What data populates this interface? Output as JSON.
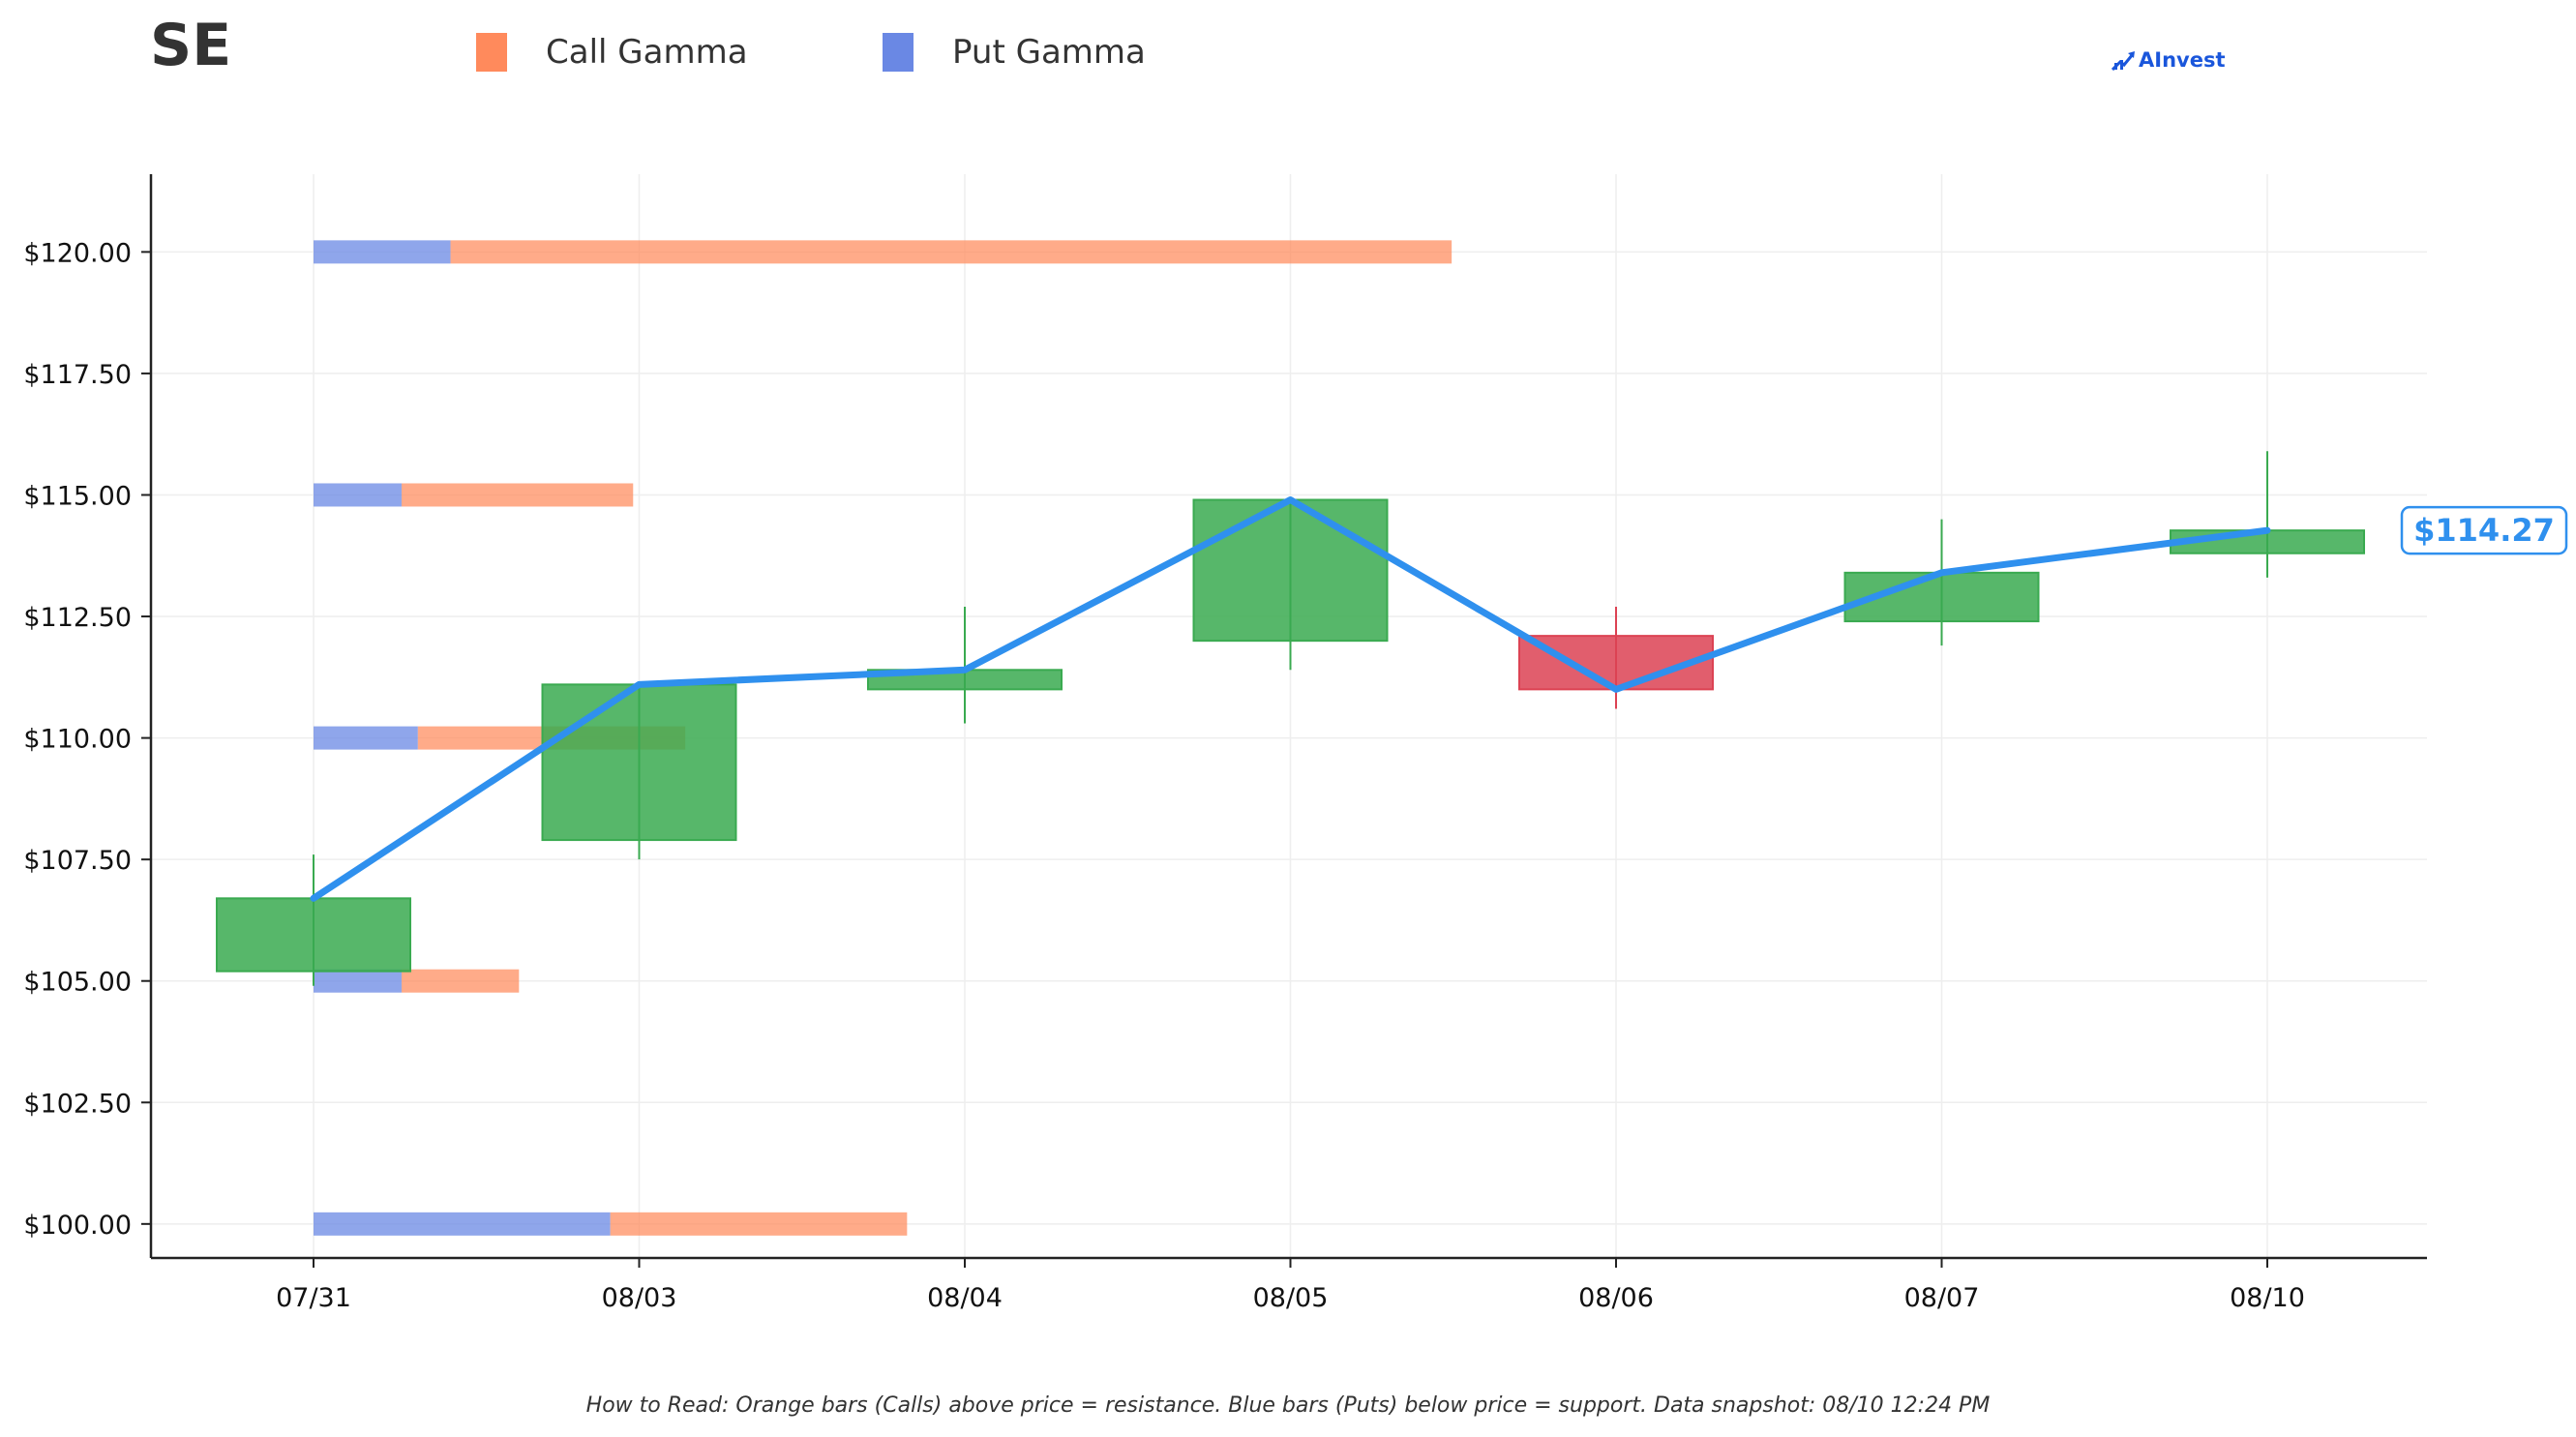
{
  "header": {
    "ticker": "SE",
    "brand": "AInvest"
  },
  "legend": [
    {
      "label": "Call Gamma",
      "color": "#ff8a5c"
    },
    {
      "label": "Put Gamma",
      "color": "#6a88e4"
    }
  ],
  "footnote": "How to Read: Orange bars (Calls) above price = resistance. Blue bars (Puts) below price = support. Data snapshot: 08/10 12:24 PM",
  "chart_data": {
    "type": "candlestick",
    "categories": [
      "07/31",
      "08/03",
      "08/04",
      "08/05",
      "08/06",
      "08/07",
      "08/10"
    ],
    "candles": [
      {
        "date": "07/31",
        "open": 105.2,
        "high": 107.6,
        "low": 104.9,
        "close": 106.7
      },
      {
        "date": "08/03",
        "open": 107.9,
        "high": 111.1,
        "low": 107.5,
        "close": 111.1
      },
      {
        "date": "08/04",
        "open": 111.0,
        "high": 112.7,
        "low": 110.3,
        "close": 111.4
      },
      {
        "date": "08/05",
        "open": 112.0,
        "high": 114.9,
        "low": 111.4,
        "close": 114.9
      },
      {
        "date": "08/06",
        "open": 112.1,
        "high": 112.7,
        "low": 110.6,
        "close": 111.0
      },
      {
        "date": "08/07",
        "open": 112.4,
        "high": 114.5,
        "low": 111.9,
        "close": 113.4
      },
      {
        "date": "08/10",
        "open": 113.8,
        "high": 115.9,
        "low": 113.3,
        "close": 114.27
      }
    ],
    "price_line": [
      106.7,
      111.1,
      111.4,
      114.9,
      111.0,
      113.4,
      114.27
    ],
    "last_price_label": "$114.27",
    "gamma_levels": [
      {
        "strike": 120.0,
        "put_gamma": 0.42,
        "call_gamma": 3.07
      },
      {
        "strike": 115.0,
        "put_gamma": 0.27,
        "call_gamma": 0.71
      },
      {
        "strike": 110.0,
        "put_gamma": 0.32,
        "call_gamma": 0.82
      },
      {
        "strike": 105.0,
        "put_gamma": 0.27,
        "call_gamma": 0.36
      },
      {
        "strike": 100.0,
        "put_gamma": 0.91,
        "call_gamma": 0.91
      }
    ],
    "y_ticks": [
      "$100.00",
      "$102.50",
      "$105.00",
      "$107.50",
      "$110.00",
      "$112.50",
      "$115.00",
      "$117.50",
      "$120.00"
    ],
    "ylim": [
      99.3,
      121.6
    ],
    "grid": true,
    "colors": {
      "up": "#3aaa50",
      "down": "#dc4253",
      "price_line": "#2f90ee",
      "call": "#ff8a5c",
      "put": "#6a88e4"
    }
  }
}
